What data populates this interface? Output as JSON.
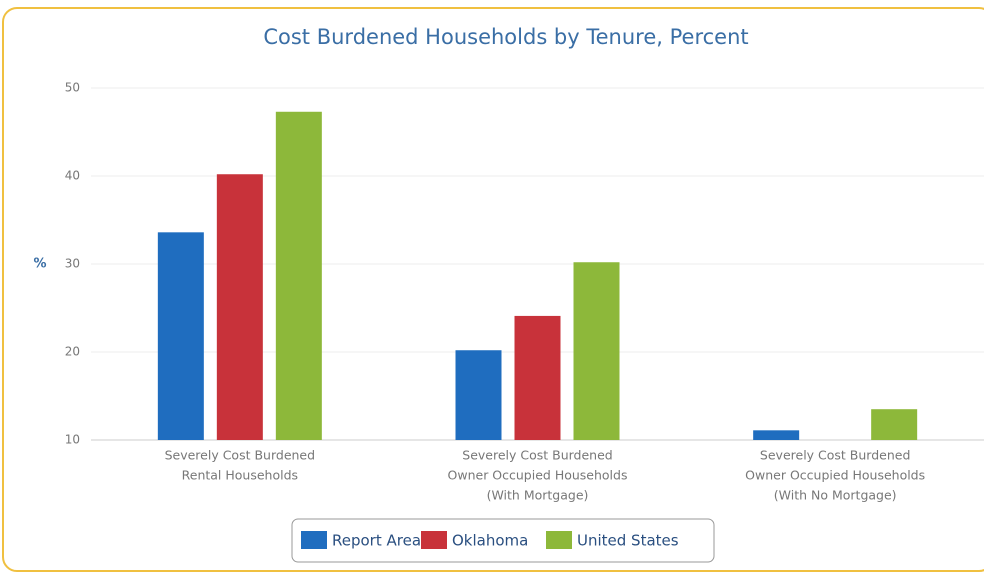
{
  "chart_data": {
    "type": "bar",
    "title": "Cost Burdened Households by Tenure, Percent",
    "y_label": "%",
    "categories": [
      [
        "Severely Cost Burdened",
        "Rental Households"
      ],
      [
        "Severely Cost Burdened",
        "Owner Occupied Households",
        "(With Mortgage)"
      ],
      [
        "Severely Cost Burdened",
        "Owner Occupied Households",
        "(With No Mortgage)"
      ]
    ],
    "series": [
      {
        "name": "Report Area",
        "color": "#1f6dbf",
        "values": [
          33.6,
          20.2,
          11.1
        ]
      },
      {
        "name": "Oklahoma",
        "color": "#c8323a",
        "values": [
          40.2,
          24.1,
          null
        ]
      },
      {
        "name": "United States",
        "color": "#8db83a",
        "values": [
          47.3,
          30.2,
          13.5
        ]
      }
    ],
    "ylim": [
      10,
      50
    ],
    "yticks": [
      10,
      20,
      30,
      40,
      50
    ],
    "grid": true,
    "legend": "bottom"
  }
}
